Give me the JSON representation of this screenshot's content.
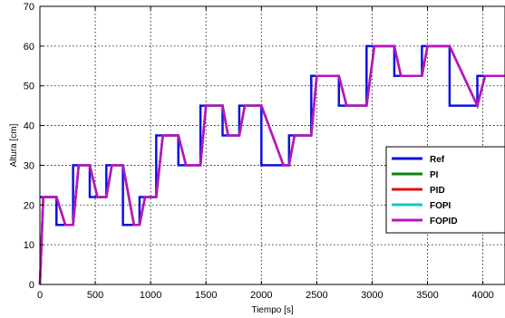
{
  "chart_data": {
    "type": "line",
    "xlabel": "Tiempo [s]",
    "ylabel": "Altura [cm]",
    "xlim": [
      0,
      4200
    ],
    "ylim": [
      0,
      70
    ],
    "xticks": [
      "0",
      "500",
      "1000",
      "1500",
      "2000",
      "2500",
      "3000",
      "3500",
      "4000"
    ],
    "yticks": [
      "0",
      "10",
      "20",
      "30",
      "40",
      "50",
      "60",
      "70"
    ],
    "grid": true,
    "legend_position": "right",
    "series": [
      {
        "name": "Ref",
        "color": "#1010e0",
        "x": [
          0,
          150,
          150,
          300,
          300,
          450,
          450,
          600,
          600,
          750,
          750,
          900,
          900,
          1050,
          1050,
          1250,
          1250,
          1450,
          1450,
          1650,
          1650,
          1800,
          1800,
          2000,
          2000,
          2250,
          2250,
          2450,
          2450,
          2700,
          2700,
          2950,
          2950,
          3200,
          3200,
          3450,
          3450,
          3700,
          3700,
          3950,
          3950,
          4200
        ],
        "values": [
          22,
          22,
          15,
          15,
          30,
          30,
          22,
          22,
          30,
          30,
          15,
          15,
          22,
          22,
          37.5,
          37.5,
          30,
          30,
          45,
          45,
          37.5,
          37.5,
          45,
          45,
          30,
          30,
          37.5,
          37.5,
          52.5,
          52.5,
          45,
          45,
          60,
          60,
          52.5,
          52.5,
          60,
          60,
          45,
          45,
          52.5,
          52.5
        ]
      },
      {
        "name": "PI",
        "color": "#108010",
        "x": [
          0,
          5,
          30,
          150,
          230,
          300,
          350,
          450,
          520,
          600,
          650,
          750,
          850,
          900,
          950,
          1050,
          1110,
          1250,
          1320,
          1450,
          1500,
          1650,
          1700,
          1800,
          1850,
          2000,
          2200,
          2250,
          2300,
          2450,
          2500,
          2700,
          2770,
          2950,
          3020,
          3200,
          3260,
          3450,
          3500,
          3700,
          3950,
          4020,
          4200
        ],
        "values": [
          0,
          3,
          22,
          22,
          15,
          15,
          30,
          30,
          22,
          22,
          30,
          30,
          15,
          15,
          22,
          22,
          37.5,
          37.5,
          30,
          30,
          45,
          45,
          37.5,
          37.5,
          45,
          45,
          30,
          30,
          37.5,
          37.5,
          52.5,
          52.5,
          45,
          45,
          60,
          60,
          52.5,
          52.5,
          60,
          60,
          45,
          52.5,
          52.5
        ]
      },
      {
        "name": "PID",
        "color": "#e01010",
        "x": [
          0,
          5,
          30,
          150,
          230,
          300,
          350,
          450,
          520,
          600,
          650,
          750,
          850,
          900,
          950,
          1050,
          1110,
          1250,
          1320,
          1450,
          1500,
          1650,
          1700,
          1800,
          1850,
          2000,
          2200,
          2250,
          2300,
          2450,
          2500,
          2700,
          2770,
          2950,
          3020,
          3200,
          3260,
          3450,
          3500,
          3700,
          3950,
          4020,
          4200
        ],
        "values": [
          0,
          3,
          22,
          22,
          15,
          15,
          30,
          30,
          22,
          22,
          30,
          30,
          15,
          15,
          22,
          22,
          37.5,
          37.5,
          30,
          30,
          45,
          45,
          37.5,
          37.5,
          45,
          45,
          30,
          30,
          37.5,
          37.5,
          52.5,
          52.5,
          45,
          45,
          60,
          60,
          52.5,
          52.5,
          60,
          60,
          45,
          52.5,
          52.5
        ]
      },
      {
        "name": "FOPI",
        "color": "#10c8c8",
        "x": [
          0,
          5,
          30,
          150,
          230,
          300,
          350,
          450,
          520,
          600,
          650,
          750,
          850,
          900,
          950,
          1050,
          1110,
          1250,
          1320,
          1450,
          1500,
          1650,
          1700,
          1800,
          1850,
          2000,
          2200,
          2250,
          2300,
          2450,
          2500,
          2700,
          2770,
          2950,
          3020,
          3200,
          3260,
          3450,
          3500,
          3700,
          3950,
          4020,
          4200
        ],
        "values": [
          0,
          3,
          22,
          22,
          15,
          15,
          30,
          30,
          22,
          22,
          30,
          30,
          15,
          15,
          22,
          22,
          37.5,
          37.5,
          30,
          30,
          45,
          45,
          37.5,
          37.5,
          45,
          45,
          30,
          30,
          37.5,
          37.5,
          52.5,
          52.5,
          45,
          45,
          60,
          60,
          52.5,
          52.5,
          60,
          60,
          45,
          52.5,
          52.5
        ]
      },
      {
        "name": "FOPID",
        "color": "#c010c0",
        "x": [
          0,
          5,
          30,
          150,
          230,
          300,
          350,
          450,
          520,
          600,
          650,
          750,
          850,
          900,
          950,
          1050,
          1110,
          1250,
          1320,
          1450,
          1500,
          1650,
          1700,
          1800,
          1850,
          2000,
          2200,
          2250,
          2300,
          2450,
          2500,
          2700,
          2770,
          2950,
          3020,
          3200,
          3260,
          3450,
          3500,
          3700,
          3950,
          4020,
          4200
        ],
        "values": [
          0,
          3,
          22,
          22,
          15,
          15,
          30,
          30,
          22,
          22,
          30,
          30,
          15,
          15,
          22,
          22,
          37.5,
          37.5,
          30,
          30,
          45,
          45,
          37.5,
          37.5,
          45,
          45,
          30,
          30,
          37.5,
          37.5,
          52.5,
          52.5,
          45,
          45,
          60,
          60,
          52.5,
          52.5,
          60,
          60,
          45,
          52.5,
          52.5
        ]
      }
    ]
  }
}
